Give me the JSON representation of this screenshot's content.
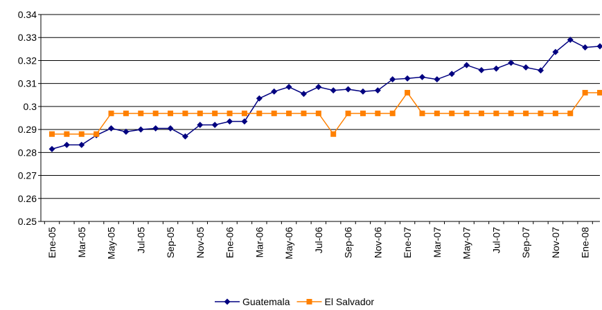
{
  "chart_data": {
    "type": "line",
    "categories": [
      "Ene-05",
      null,
      "Mar-05",
      null,
      "May-05",
      null,
      "Jul-05",
      null,
      "Sep-05",
      null,
      "Nov-05",
      null,
      "Ene-06",
      null,
      "Mar-06",
      null,
      "May-06",
      null,
      "Jul-06",
      null,
      "Sep-06",
      null,
      "Nov-06",
      null,
      "Ene-07",
      null,
      "Mar-07",
      null,
      "May-07",
      null,
      "Jul-07",
      null,
      "Sep-07",
      null,
      "Nov-07",
      null,
      "Ene-08",
      null
    ],
    "series": [
      {
        "name": "Guatemala",
        "color": "#000080",
        "marker": "diamond",
        "values": [
          0.2815,
          0.2833,
          0.2833,
          0.2875,
          0.2905,
          0.289,
          0.29,
          0.2905,
          0.2905,
          0.287,
          0.292,
          0.292,
          0.2935,
          0.2935,
          0.3035,
          0.3065,
          0.3085,
          0.3055,
          0.3085,
          0.307,
          0.3075,
          0.3065,
          0.307,
          0.3118,
          0.3122,
          0.3128,
          0.3118,
          0.3142,
          0.318,
          0.3158,
          0.3165,
          0.319,
          0.317,
          0.3157,
          0.3237,
          0.329,
          0.3257,
          0.3262
        ]
      },
      {
        "name": "El Salvador",
        "color": "#ff8000",
        "marker": "square",
        "values": [
          0.288,
          0.288,
          0.288,
          0.288,
          0.297,
          0.297,
          0.297,
          0.297,
          0.297,
          0.297,
          0.297,
          0.297,
          0.297,
          0.297,
          0.297,
          0.297,
          0.297,
          0.297,
          0.297,
          0.288,
          0.297,
          0.297,
          0.297,
          0.297,
          0.306,
          0.297,
          0.297,
          0.297,
          0.297,
          0.297,
          0.297,
          0.297,
          0.297,
          0.297,
          0.297,
          0.297,
          0.306,
          0.306
        ]
      }
    ],
    "ylim": [
      0.25,
      0.34
    ],
    "yticks": [
      0.25,
      0.26,
      0.27,
      0.28,
      0.29,
      0.3,
      0.31,
      0.32,
      0.33,
      0.34
    ],
    "grid": true,
    "legend": "bottom"
  }
}
